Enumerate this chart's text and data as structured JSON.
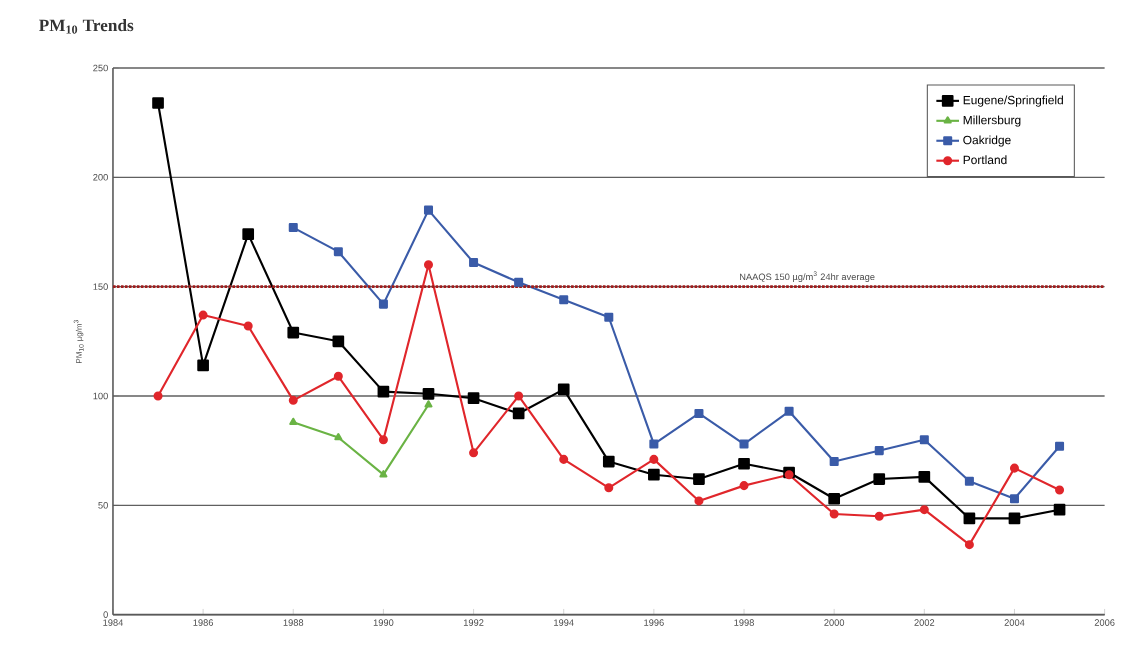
{
  "chart_data": {
    "type": "line",
    "title": "PM$_{10}$ Trends",
    "ylabel": "PM$_{10}$ µg/m$^{3}$",
    "xlim": [
      1984,
      2006
    ],
    "xticks": [
      1984,
      1986,
      1988,
      1990,
      1992,
      1994,
      1996,
      1998,
      2000,
      2002,
      2004,
      2006
    ],
    "ylim": [
      0,
      250
    ],
    "yticks": [
      0,
      50,
      100,
      150,
      200,
      250
    ],
    "grid": "y",
    "legend": "top right",
    "line_style": "solid",
    "series": [
      {
        "name": "Eugene/Springfield",
        "color": "#000000",
        "marker": "square",
        "x": [
          1985,
          1986,
          1987,
          1988,
          1989,
          1990,
          1991,
          1992,
          1993,
          1994,
          1995,
          1996,
          1997,
          1998,
          1999,
          2000,
          2001,
          2002,
          2003,
          2004,
          2005
        ],
        "values": [
          234,
          114,
          174,
          129,
          125,
          102,
          101,
          99,
          92,
          103,
          70,
          64,
          62,
          69,
          65,
          53,
          62,
          63,
          44,
          44,
          48
        ]
      },
      {
        "name": "Millersburg",
        "color": "#6ab344",
        "marker": "triangle",
        "x": [
          1988,
          1989,
          1990,
          1991
        ],
        "values": [
          88,
          81,
          64,
          96
        ]
      },
      {
        "name": "Oakridge",
        "color": "#3a5ba8",
        "marker": "square",
        "x": [
          1988,
          1989,
          1990,
          1991,
          1992,
          1993,
          1994,
          1995,
          1996,
          1997,
          1998,
          1999,
          2000,
          2001,
          2002,
          2003,
          2004,
          2005
        ],
        "values": [
          177,
          166,
          142,
          185,
          161,
          152,
          144,
          136,
          78,
          92,
          78,
          93,
          70,
          75,
          80,
          61,
          53,
          77
        ]
      },
      {
        "name": "Portland",
        "color": "#e0262b",
        "marker": "circle",
        "x": [
          1985,
          1986,
          1987,
          1988,
          1989,
          1990,
          1991,
          1992,
          1993,
          1994,
          1995,
          1996,
          1997,
          1998,
          1999,
          2000,
          2001,
          2002,
          2003,
          2004,
          2005
        ],
        "values": [
          100,
          137,
          132,
          98,
          109,
          80,
          160,
          74,
          100,
          71,
          58,
          71,
          52,
          59,
          64,
          46,
          45,
          48,
          32,
          67,
          57
        ]
      }
    ],
    "ref_lines": [
      {
        "axis": "y",
        "value": 150,
        "label": "NAAQS 150 µg/m$^{3}$ 24hr average",
        "color": "#a01c1c",
        "line_style": "dotted"
      }
    ]
  }
}
